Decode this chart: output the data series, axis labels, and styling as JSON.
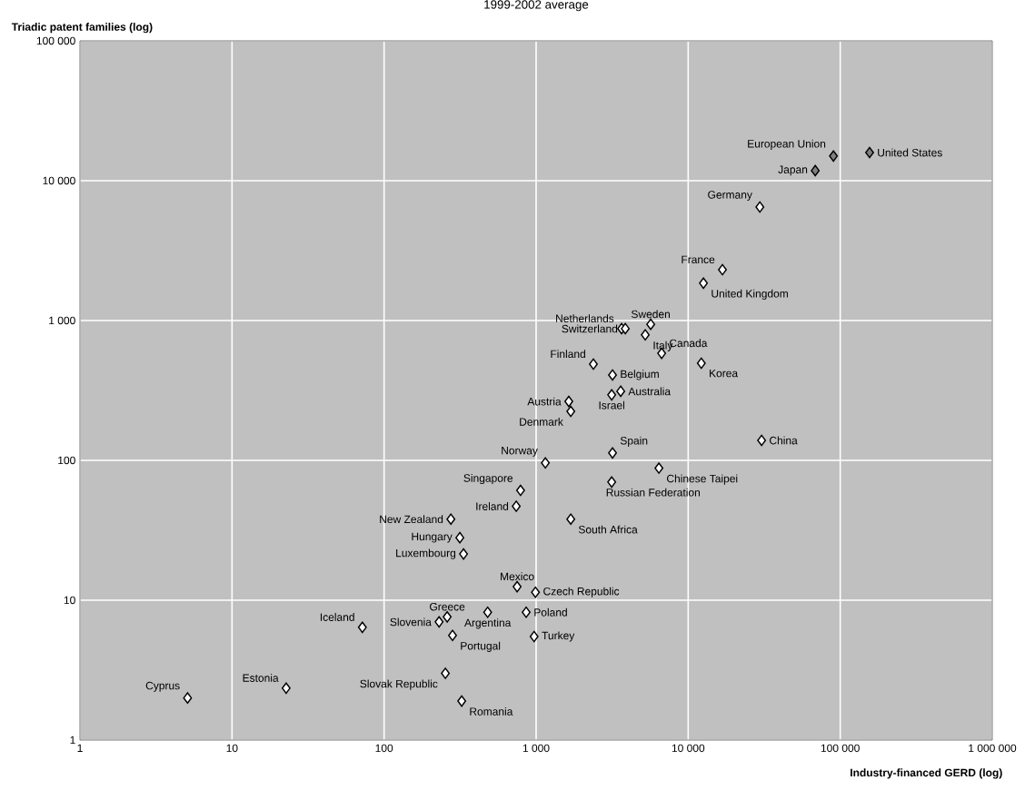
{
  "chart_data": {
    "type": "scatter",
    "title": "1999-2002 average",
    "xlabel": "Industry-financed GERD (log)",
    "ylabel": "Triadic patent families (log)",
    "log": "xy",
    "grid": true,
    "marker": "diamond",
    "xlim": [
      1,
      1000000
    ],
    "ylim": [
      1,
      100000
    ],
    "xticks": [
      1,
      10,
      100,
      {
        "value": 1000,
        "label": "1 000"
      },
      {
        "value": 10000,
        "label": "10 000"
      },
      {
        "value": 100000,
        "label": "100 000"
      },
      {
        "value": 1000000,
        "label": "1 000 000"
      }
    ],
    "yticks": [
      1,
      10,
      100,
      {
        "value": 1000,
        "label": "1 000"
      },
      {
        "value": 10000,
        "label": "10 000"
      },
      {
        "value": 100000,
        "label": "100 000"
      }
    ],
    "series": [
      {
        "color": "#ffffff",
        "x": [
          29600,
          16800,
          12600,
          5670,
          3650,
          3860,
          5220,
          6690,
          12200,
          2380,
          3180,
          3600,
          3140,
          1640,
          1690,
          30400,
          3180,
          1150,
          6420,
          3140,
          790,
          740,
          1690,
          275,
          315,
          333,
          750,
          990,
          260,
          230,
          480,
          860,
          72,
          282,
          970,
          253,
          22.7,
          5.1,
          324
        ],
        "values": [
          6480,
          2310,
          1850,
          940,
          875,
          875,
          790,
          583,
          495,
          488,
          408,
          312,
          294,
          264,
          224,
          139,
          113,
          96,
          88,
          70,
          61,
          47,
          38,
          38,
          28,
          21.4,
          12.5,
          11.4,
          7.6,
          7.0,
          8.2,
          8.2,
          6.4,
          5.6,
          5.5,
          3.0,
          2.35,
          2.0,
          1.9
        ]
      },
      {
        "color": "#808080",
        "x": [
          90200,
          68500,
          156000
        ],
        "values": [
          15000,
          11800,
          15900
        ]
      }
    ],
    "annotations": [
      {
        "text": "Germany",
        "x": 29600,
        "y": 6480
      },
      {
        "text": "France",
        "x": 16800,
        "y": 2310
      },
      {
        "text": "United Kingdom",
        "x": 12600,
        "y": 1850
      },
      {
        "text": "Sweden",
        "x": 5670,
        "y": 940
      },
      {
        "text": "Netherlands",
        "x": 3650,
        "y": 875
      },
      {
        "text": "Switzerland",
        "x": 3860,
        "y": 875
      },
      {
        "text": "Italy",
        "x": 5220,
        "y": 790
      },
      {
        "text": "Canada",
        "x": 6690,
        "y": 583
      },
      {
        "text": "Korea",
        "x": 12200,
        "y": 495
      },
      {
        "text": "Finland",
        "x": 2380,
        "y": 488
      },
      {
        "text": "Belgium",
        "x": 3180,
        "y": 408
      },
      {
        "text": "Australia",
        "x": 3600,
        "y": 312
      },
      {
        "text": "Israel",
        "x": 3140,
        "y": 294
      },
      {
        "text": "Austria",
        "x": 1640,
        "y": 264
      },
      {
        "text": "Denmark",
        "x": 1690,
        "y": 224
      },
      {
        "text": "China",
        "x": 30400,
        "y": 139
      },
      {
        "text": "Spain",
        "x": 3180,
        "y": 113
      },
      {
        "text": "Norway",
        "x": 1150,
        "y": 96
      },
      {
        "text": "Chinese Taipei",
        "x": 6420,
        "y": 88
      },
      {
        "text": "Russian Federation",
        "x": 3140,
        "y": 70
      },
      {
        "text": "Singapore",
        "x": 790,
        "y": 61
      },
      {
        "text": "Ireland",
        "x": 740,
        "y": 47
      },
      {
        "text": "South Africa",
        "x": 1690,
        "y": 38
      },
      {
        "text": "New Zealand",
        "x": 275,
        "y": 38
      },
      {
        "text": "Hungary",
        "x": 315,
        "y": 28
      },
      {
        "text": "Luxembourg",
        "x": 333,
        "y": 21.4
      },
      {
        "text": "Mexico",
        "x": 750,
        "y": 12.5
      },
      {
        "text": "Czech Republic",
        "x": 990,
        "y": 11.4
      },
      {
        "text": "Greece",
        "x": 260,
        "y": 7.6
      },
      {
        "text": "Slovenia",
        "x": 230,
        "y": 7.0
      },
      {
        "text": "Argentina",
        "x": 480,
        "y": 8.2
      },
      {
        "text": "Poland",
        "x": 860,
        "y": 8.2
      },
      {
        "text": "Iceland",
        "x": 72,
        "y": 6.4
      },
      {
        "text": "Portugal",
        "x": 282,
        "y": 5.6
      },
      {
        "text": "Turkey",
        "x": 970,
        "y": 5.5
      },
      {
        "text": "Slovak Republic",
        "x": 253,
        "y": 3.0
      },
      {
        "text": "Estonia",
        "x": 22.7,
        "y": 2.35
      },
      {
        "text": "Cyprus",
        "x": 5.1,
        "y": 2.0
      },
      {
        "text": "Romania",
        "x": 324,
        "y": 1.9
      },
      {
        "text": "European Union",
        "x": 90200,
        "y": 15000
      },
      {
        "text": "Japan",
        "x": 68500,
        "y": 11800
      },
      {
        "text": "United States",
        "x": 156000,
        "y": 15900
      }
    ]
  }
}
